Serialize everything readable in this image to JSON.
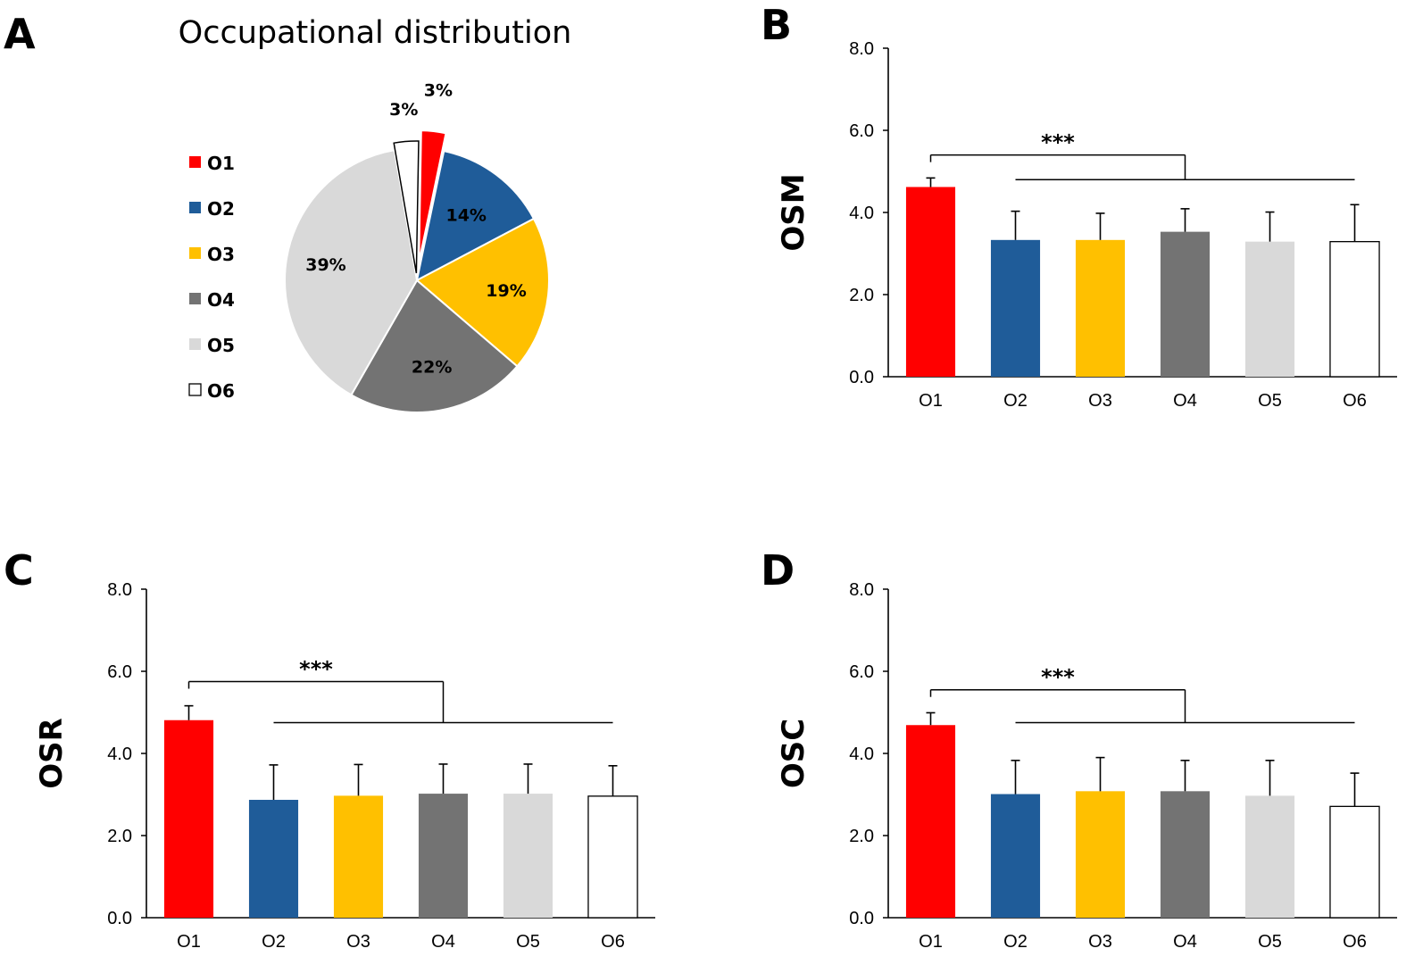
{
  "panels": {
    "a": "A",
    "b": "B",
    "c": "C",
    "d": "D"
  },
  "colors": {
    "O1": "#ff0000",
    "O2": "#1f5c99",
    "O3": "#ffc000",
    "O4": "#737373",
    "O5": "#d9d9d9",
    "O6": "#ffffff"
  },
  "significance": "***",
  "chart_data": [
    {
      "type": "pie",
      "title": "Occupational distribution",
      "categories": [
        "O1",
        "O2",
        "O3",
        "O4",
        "O5",
        "O6"
      ],
      "values": [
        3,
        14,
        19,
        22,
        39,
        3
      ],
      "labels": [
        "3%",
        "14%",
        "19%",
        "22%",
        "39%",
        "3%"
      ],
      "exploded": [
        "O1",
        "O6"
      ],
      "legend": "left"
    },
    {
      "type": "bar",
      "panel": "B",
      "ylabel": "OSM",
      "categories": [
        "O1",
        "O2",
        "O3",
        "O4",
        "O5",
        "O6"
      ],
      "values": [
        4.62,
        3.33,
        3.33,
        3.53,
        3.29,
        3.29
      ],
      "errors": [
        0.22,
        0.7,
        0.65,
        0.56,
        0.72,
        0.9
      ],
      "ylim": [
        0,
        8
      ],
      "yticks": [
        "0.0",
        "2.0",
        "4.0",
        "6.0",
        "8.0"
      ],
      "significance_bracket_levels": [
        5.4,
        4.8
      ]
    },
    {
      "type": "bar",
      "panel": "C",
      "ylabel": "OSR",
      "categories": [
        "O1",
        "O2",
        "O3",
        "O4",
        "O5",
        "O6"
      ],
      "values": [
        4.81,
        2.87,
        2.97,
        3.02,
        3.02,
        2.96
      ],
      "errors": [
        0.35,
        0.85,
        0.76,
        0.72,
        0.72,
        0.74
      ],
      "ylim": [
        0,
        8
      ],
      "yticks": [
        "0.0",
        "2.0",
        "4.0",
        "6.0",
        "8.0"
      ],
      "significance_bracket_levels": [
        5.75,
        4.75
      ]
    },
    {
      "type": "bar",
      "panel": "D",
      "ylabel": "OSC",
      "categories": [
        "O1",
        "O2",
        "O3",
        "O4",
        "O5",
        "O6"
      ],
      "values": [
        4.69,
        3.01,
        3.08,
        3.08,
        2.97,
        2.71
      ],
      "errors": [
        0.3,
        0.82,
        0.82,
        0.75,
        0.86,
        0.81
      ],
      "ylim": [
        0,
        8
      ],
      "yticks": [
        "0.0",
        "2.0",
        "4.0",
        "6.0",
        "8.0"
      ],
      "significance_bracket_levels": [
        5.55,
        4.75
      ]
    }
  ]
}
